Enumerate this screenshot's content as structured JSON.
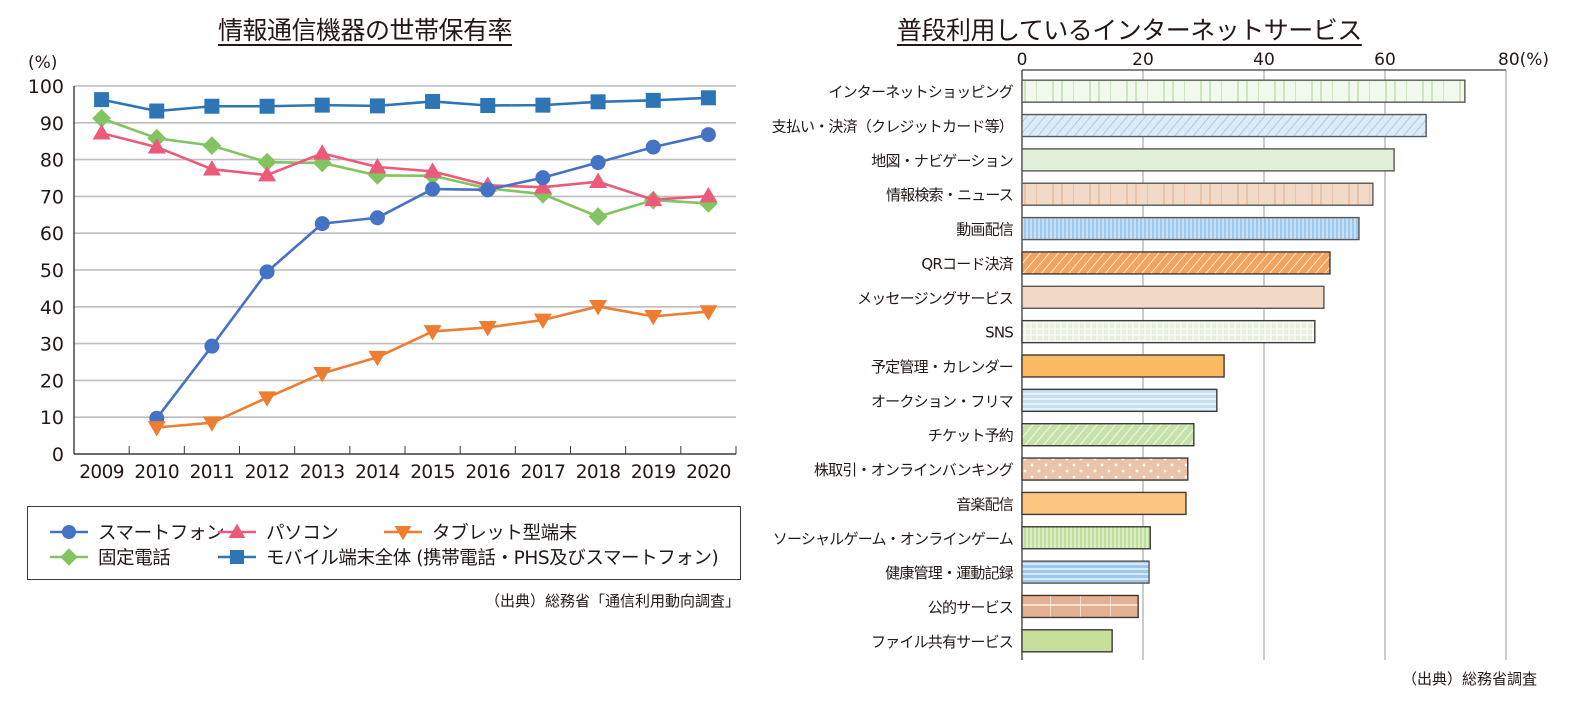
{
  "chart_data": [
    {
      "type": "line",
      "title": "情報通信機器の世帯保有率",
      "xlabel": "",
      "ylabel": "(%)",
      "ylim": [
        0,
        100
      ],
      "yticks": [
        0,
        10,
        20,
        30,
        40,
        50,
        60,
        70,
        80,
        90,
        100
      ],
      "grid": true,
      "x": [
        "2009",
        "2010",
        "2011",
        "2012",
        "2013",
        "2014",
        "2015",
        "2016",
        "2017",
        "2018",
        "2019",
        "2020"
      ],
      "legend_position": "bottom",
      "series": [
        {
          "name": "スマートフォン",
          "color": "#4472c4",
          "marker": "circle",
          "values": [
            null,
            9.7,
            29.3,
            49.5,
            62.6,
            64.2,
            72.0,
            71.8,
            75.1,
            79.2,
            83.4,
            86.8
          ]
        },
        {
          "name": "パソコン",
          "color": "#ec5a7a",
          "marker": "triangle-up",
          "values": [
            87.2,
            83.4,
            77.4,
            75.8,
            81.7,
            78.0,
            76.8,
            73.0,
            72.5,
            74.0,
            69.1,
            70.1
          ]
        },
        {
          "name": "タブレット型端末",
          "color": "#ed7d31",
          "marker": "triangle-down",
          "values": [
            null,
            7.2,
            8.5,
            15.3,
            21.9,
            26.3,
            33.3,
            34.4,
            36.4,
            40.1,
            37.4,
            38.7
          ]
        },
        {
          "name": "固定電話",
          "color": "#82c461",
          "marker": "diamond",
          "values": [
            91.2,
            85.8,
            83.8,
            79.3,
            79.1,
            75.7,
            75.6,
            72.2,
            70.6,
            64.5,
            69.0,
            68.1
          ]
        },
        {
          "name": "モバイル端末全体 (携帯電話・PHS及びスマートフォン)",
          "color": "#2e75b6",
          "marker": "square",
          "values": [
            96.3,
            93.2,
            94.5,
            94.5,
            94.8,
            94.6,
            95.8,
            94.7,
            94.8,
            95.7,
            96.1,
            96.8
          ]
        }
      ],
      "source": "（出典）総務省「通信利用動向調査」"
    },
    {
      "type": "bar",
      "orientation": "horizontal",
      "title": "普段利用しているインターネットサービス",
      "xlabel": "",
      "ylabel": "",
      "xlim": [
        0,
        80
      ],
      "xticks": [
        "0",
        "20",
        "40",
        "60",
        "80(%)"
      ],
      "grid": true,
      "categories": [
        "インターネットショッピング",
        "支払い・決済（クレジットカード等）",
        "地図・ナビゲーション",
        "情報検索・ニュース",
        "動画配信",
        "QRコード決済",
        "メッセージングサービス",
        "SNS",
        "予定管理・カレンダー",
        "オークション・フリマ",
        "チケット予約",
        "株取引・オンラインバンキング",
        "音楽配信",
        "ソーシャルゲーム・オンラインゲーム",
        "健康管理・運動記録",
        "公的サービス",
        "ファイル共有サービス"
      ],
      "values": [
        73.2,
        66.8,
        61.5,
        58.0,
        55.7,
        50.9,
        49.9,
        48.4,
        33.4,
        32.2,
        28.4,
        27.4,
        27.1,
        21.2,
        21.0,
        19.2,
        14.9
      ],
      "bar_styles": [
        {
          "fill": "#f1f8ec",
          "pattern": "vlines-sparse",
          "pattern_color": "#a9d18e",
          "stroke": "#595757"
        },
        {
          "fill": "#dcebf8",
          "pattern": "diagonal",
          "pattern_color": "#9dc3e6",
          "stroke": "#595757"
        },
        {
          "fill": "#e2efd9",
          "pattern": "none",
          "pattern_color": "",
          "stroke": "#595757"
        },
        {
          "fill": "#f2dac8",
          "pattern": "vlines-sparse",
          "pattern_color": "#e3a982",
          "stroke": "#595757"
        },
        {
          "fill": "#9dc8ec",
          "pattern": "vlines-dense",
          "pattern_color": "#ffffff",
          "stroke": "#595757"
        },
        {
          "fill": "#f4a25d",
          "pattern": "diagonal-white",
          "pattern_color": "#ffffff",
          "stroke": "#3e3a39"
        },
        {
          "fill": "#f2d9c6",
          "pattern": "none",
          "pattern_color": "",
          "stroke": "#595757"
        },
        {
          "fill": "#e6f0dc",
          "pattern": "grid",
          "pattern_color": "#ffffff",
          "stroke": "#3e3a39"
        },
        {
          "fill": "#fbbb62",
          "pattern": "none",
          "pattern_color": "",
          "stroke": "#3e3a39"
        },
        {
          "fill": "#c5dff3",
          "pattern": "hlines",
          "pattern_color": "#ffffff",
          "stroke": "#3e3a39"
        },
        {
          "fill": "#c6e1a9",
          "pattern": "diagonal-white",
          "pattern_color": "#ffffff",
          "stroke": "#3e3a39"
        },
        {
          "fill": "#e9c4ab",
          "pattern": "dots",
          "pattern_color": "#ffffff",
          "stroke": "#3e3a39"
        },
        {
          "fill": "#fcc680",
          "pattern": "none",
          "pattern_color": "",
          "stroke": "#3e3a39"
        },
        {
          "fill": "#bfdf9b",
          "pattern": "vlines-dense",
          "pattern_color": "#ffffff",
          "stroke": "#3e3a39"
        },
        {
          "fill": "#9dc8ec",
          "pattern": "hlines",
          "pattern_color": "#ffffff",
          "stroke": "#595757"
        },
        {
          "fill": "#e3b191",
          "pattern": "bricks",
          "pattern_color": "#ffffff",
          "stroke": "#3e3a39"
        },
        {
          "fill": "#c6df9b",
          "pattern": "none",
          "pattern_color": "",
          "stroke": "#3e3a39"
        }
      ],
      "source": "（出典）総務省調査"
    }
  ]
}
